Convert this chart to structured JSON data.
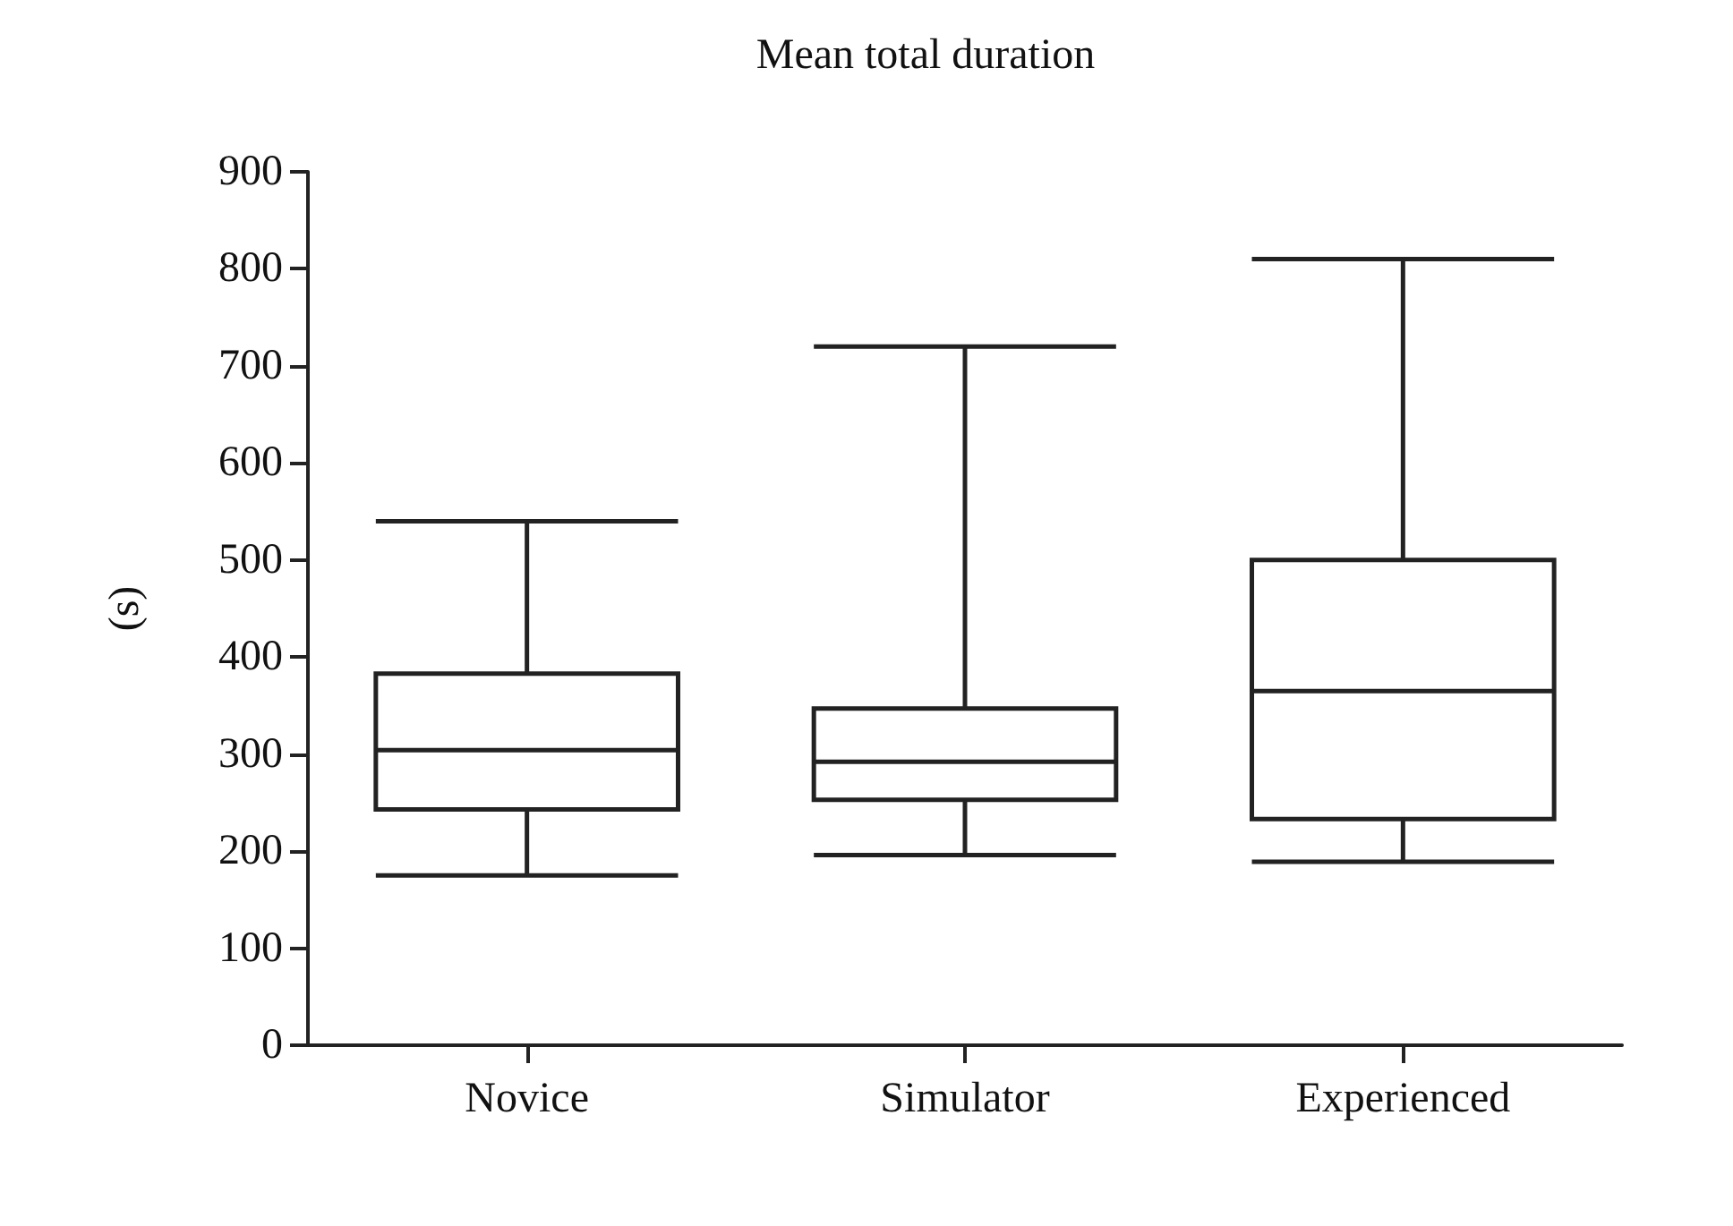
{
  "chart_data": {
    "type": "box",
    "title": "Mean total duration",
    "ylabel": "(s)",
    "categories": [
      "Novice",
      "Simulator",
      "Experienced"
    ],
    "boxes": [
      {
        "low": 175,
        "q1": 243,
        "median": 304,
        "q3": 383,
        "high": 540
      },
      {
        "low": 196,
        "q1": 253,
        "median": 292,
        "q3": 347,
        "high": 720
      },
      {
        "low": 189,
        "q1": 233,
        "median": 365,
        "q3": 500,
        "high": 810
      }
    ],
    "color": "#222222",
    "ylim": [
      0,
      900
    ],
    "yticks": [
      0,
      100,
      200,
      300,
      400,
      500,
      600,
      700,
      800,
      900
    ],
    "grid": false
  }
}
